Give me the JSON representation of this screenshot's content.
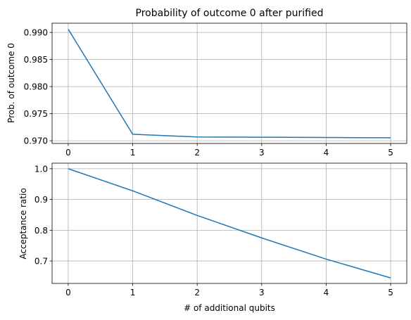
{
  "chart_data": [
    {
      "type": "line",
      "title": "Probability of outcome 0 after purified",
      "xlabel": "",
      "ylabel": "Prob. of outcome 0",
      "x": [
        0,
        1,
        2,
        3,
        4,
        5
      ],
      "series": [
        {
          "values": [
            0.9906,
            0.9712,
            0.9707,
            0.97065,
            0.9706,
            0.97055
          ],
          "color": "#1f77b4"
        }
      ],
      "xlim": [
        -0.25,
        5.25
      ],
      "ylim": [
        0.9695,
        0.9917
      ],
      "xticks": [
        0,
        1,
        2,
        3,
        4,
        5
      ],
      "xtick_labels": [
        "0",
        "1",
        "2",
        "3",
        "4",
        "5"
      ],
      "yticks": [
        0.97,
        0.975,
        0.98,
        0.985,
        0.99
      ],
      "ytick_labels": [
        "0.970",
        "0.975",
        "0.980",
        "0.985",
        "0.990"
      ],
      "grid": true
    },
    {
      "type": "line",
      "title": "",
      "xlabel": "# of additional qubits",
      "ylabel": "Acceptance ratio",
      "x": [
        0,
        1,
        2,
        3,
        4,
        5
      ],
      "series": [
        {
          "values": [
            1.0,
            0.928,
            0.848,
            0.775,
            0.706,
            0.645
          ],
          "color": "#1f77b4"
        }
      ],
      "xlim": [
        -0.25,
        5.25
      ],
      "ylim": [
        0.627,
        1.018
      ],
      "xticks": [
        0,
        1,
        2,
        3,
        4,
        5
      ],
      "xtick_labels": [
        "0",
        "1",
        "2",
        "3",
        "4",
        "5"
      ],
      "yticks": [
        0.7,
        0.8,
        0.9,
        1.0
      ],
      "ytick_labels": [
        "0.7",
        "0.8",
        "0.9",
        "1.0"
      ],
      "grid": true
    }
  ],
  "colors": {
    "line": "#1f77b4",
    "grid": "#b0b0b0",
    "axes": "#000000"
  }
}
